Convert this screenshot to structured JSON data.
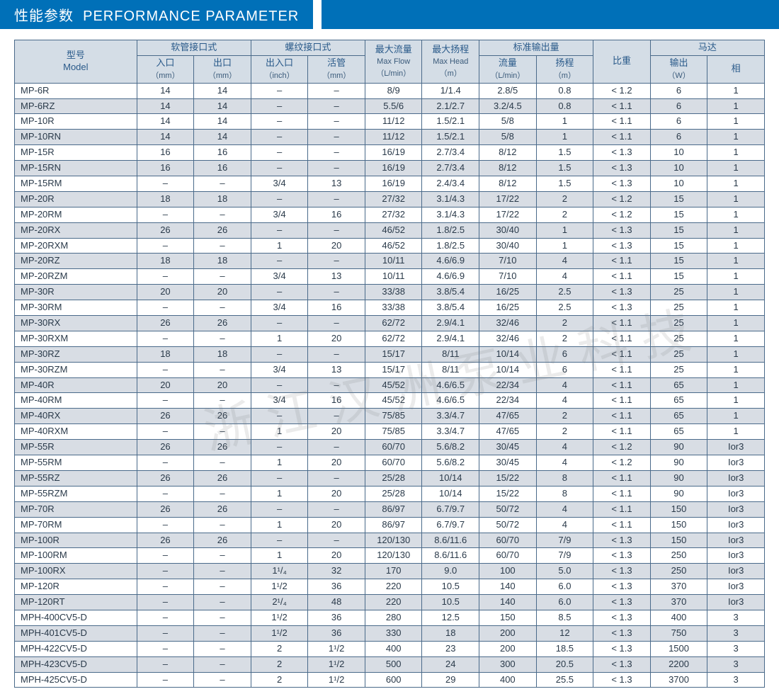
{
  "title_cn": "性能参数",
  "title_en": "PERFORMANCE PARAMETER",
  "watermark": "浙江汉洲泵业科技",
  "colors": {
    "header_bar": "#0070b8",
    "th_bg": "#d4dde6",
    "th_text": "#2a5a8a",
    "border": "#4a6a8a",
    "row_odd": "#ffffff",
    "row_even": "#d8dde4"
  },
  "header": {
    "group_model": {
      "l1": "型号",
      "l2": "Model"
    },
    "group_hose": "软管接口式",
    "group_thread": "螺纹接口式",
    "group_maxflow": {
      "l1": "最大流量",
      "l2": "Max Flow",
      "l3": "（L/min）"
    },
    "group_maxhead": {
      "l1": "最大扬程",
      "l2": "Max Head",
      "l3": "（m）"
    },
    "group_stdout": "标准输出量",
    "group_sg": "比重",
    "group_motor": "马达",
    "sub_inlet": {
      "l1": "入口",
      "l2": "（mm）"
    },
    "sub_outlet": {
      "l1": "出口",
      "l2": "（mm）"
    },
    "sub_io": {
      "l1": "出入口",
      "l2": "（inch）"
    },
    "sub_live": {
      "l1": "活管",
      "l2": "（mm）"
    },
    "sub_flow": {
      "l1": "流量",
      "l2": "（L/min）"
    },
    "sub_head": {
      "l1": "扬程",
      "l2": "（m）"
    },
    "sub_output": {
      "l1": "输出",
      "l2": "（W）"
    },
    "sub_phase": "相"
  },
  "rows": [
    [
      "MP-6R",
      "14",
      "14",
      "–",
      "–",
      "8/9",
      "1/1.4",
      "2.8/5",
      "0.8",
      "< 1.2",
      "6",
      "1"
    ],
    [
      "MP-6RZ",
      "14",
      "14",
      "–",
      "–",
      "5.5/6",
      "2.1/2.7",
      "3.2/4.5",
      "0.8",
      "< 1.1",
      "6",
      "1"
    ],
    [
      "MP-10R",
      "14",
      "14",
      "–",
      "–",
      "11/12",
      "1.5/2.1",
      "5/8",
      "1",
      "< 1.1",
      "6",
      "1"
    ],
    [
      "MP-10RN",
      "14",
      "14",
      "–",
      "–",
      "11/12",
      "1.5/2.1",
      "5/8",
      "1",
      "< 1.1",
      "6",
      "1"
    ],
    [
      "MP-15R",
      "16",
      "16",
      "–",
      "–",
      "16/19",
      "2.7/3.4",
      "8/12",
      "1.5",
      "< 1.3",
      "10",
      "1"
    ],
    [
      "MP-15RN",
      "16",
      "16",
      "–",
      "–",
      "16/19",
      "2.7/3.4",
      "8/12",
      "1.5",
      "< 1.3",
      "10",
      "1"
    ],
    [
      "MP-15RM",
      "–",
      "–",
      "3/4",
      "13",
      "16/19",
      "2.4/3.4",
      "8/12",
      "1.5",
      "< 1.3",
      "10",
      "1"
    ],
    [
      "MP-20R",
      "18",
      "18",
      "–",
      "–",
      "27/32",
      "3.1/4.3",
      "17/22",
      "2",
      "< 1.2",
      "15",
      "1"
    ],
    [
      "MP-20RM",
      "–",
      "–",
      "3/4",
      "16",
      "27/32",
      "3.1/4.3",
      "17/22",
      "2",
      "< 1.2",
      "15",
      "1"
    ],
    [
      "MP-20RX",
      "26",
      "26",
      "–",
      "–",
      "46/52",
      "1.8/2.5",
      "30/40",
      "1",
      "< 1.3",
      "15",
      "1"
    ],
    [
      "MP-20RXM",
      "–",
      "–",
      "1",
      "20",
      "46/52",
      "1.8/2.5",
      "30/40",
      "1",
      "< 1.3",
      "15",
      "1"
    ],
    [
      "MP-20RZ",
      "18",
      "18",
      "–",
      "–",
      "10/11",
      "4.6/6.9",
      "7/10",
      "4",
      "< 1.1",
      "15",
      "1"
    ],
    [
      "MP-20RZM",
      "–",
      "–",
      "3/4",
      "13",
      "10/11",
      "4.6/6.9",
      "7/10",
      "4",
      "< 1.1",
      "15",
      "1"
    ],
    [
      "MP-30R",
      "20",
      "20",
      "–",
      "–",
      "33/38",
      "3.8/5.4",
      "16/25",
      "2.5",
      "< 1.3",
      "25",
      "1"
    ],
    [
      "MP-30RM",
      "–",
      "–",
      "3/4",
      "16",
      "33/38",
      "3.8/5.4",
      "16/25",
      "2.5",
      "< 1.3",
      "25",
      "1"
    ],
    [
      "MP-30RX",
      "26",
      "26",
      "–",
      "–",
      "62/72",
      "2.9/4.1",
      "32/46",
      "2",
      "< 1.1",
      "25",
      "1"
    ],
    [
      "MP-30RXM",
      "–",
      "–",
      "1",
      "20",
      "62/72",
      "2.9/4.1",
      "32/46",
      "2",
      "< 1.1",
      "25",
      "1"
    ],
    [
      "MP-30RZ",
      "18",
      "18",
      "–",
      "–",
      "15/17",
      "8/11",
      "10/14",
      "6",
      "< 1.1",
      "25",
      "1"
    ],
    [
      "MP-30RZM",
      "–",
      "–",
      "3/4",
      "13",
      "15/17",
      "8/11",
      "10/14",
      "6",
      "< 1.1",
      "25",
      "1"
    ],
    [
      "MP-40R",
      "20",
      "20",
      "–",
      "–",
      "45/52",
      "4.6/6.5",
      "22/34",
      "4",
      "< 1.1",
      "65",
      "1"
    ],
    [
      "MP-40RM",
      "–",
      "–",
      "3/4",
      "16",
      "45/52",
      "4.6/6.5",
      "22/34",
      "4",
      "< 1.1",
      "65",
      "1"
    ],
    [
      "MP-40RX",
      "26",
      "26",
      "–",
      "–",
      "75/85",
      "3.3/4.7",
      "47/65",
      "2",
      "< 1.1",
      "65",
      "1"
    ],
    [
      "MP-40RXM",
      "–",
      "–",
      "1",
      "20",
      "75/85",
      "3.3/4.7",
      "47/65",
      "2",
      "< 1.1",
      "65",
      "1"
    ],
    [
      "MP-55R",
      "26",
      "26",
      "–",
      "–",
      "60/70",
      "5.6/8.2",
      "30/45",
      "4",
      "< 1.2",
      "90",
      "Ior3"
    ],
    [
      "MP-55RM",
      "–",
      "–",
      "1",
      "20",
      "60/70",
      "5.6/8.2",
      "30/45",
      "4",
      "< 1.2",
      "90",
      "Ior3"
    ],
    [
      "MP-55RZ",
      "26",
      "26",
      "–",
      "–",
      "25/28",
      "10/14",
      "15/22",
      "8",
      "< 1.1",
      "90",
      "Ior3"
    ],
    [
      "MP-55RZM",
      "–",
      "–",
      "1",
      "20",
      "25/28",
      "10/14",
      "15/22",
      "8",
      "< 1.1",
      "90",
      "Ior3"
    ],
    [
      "MP-70R",
      "26",
      "26",
      "–",
      "–",
      "86/97",
      "6.7/9.7",
      "50/72",
      "4",
      "< 1.1",
      "150",
      "Ior3"
    ],
    [
      "MP-70RM",
      "–",
      "–",
      "1",
      "20",
      "86/97",
      "6.7/9.7",
      "50/72",
      "4",
      "< 1.1",
      "150",
      "Ior3"
    ],
    [
      "MP-100R",
      "26",
      "26",
      "–",
      "–",
      "120/130",
      "8.6/11.6",
      "60/70",
      "7/9",
      "< 1.3",
      "150",
      "Ior3"
    ],
    [
      "MP-100RM",
      "–",
      "–",
      "1",
      "20",
      "120/130",
      "8.6/11.6",
      "60/70",
      "7/9",
      "< 1.3",
      "250",
      "Ior3"
    ],
    [
      "MP-100RX",
      "–",
      "–",
      "1¹/₄",
      "32",
      "170",
      "9.0",
      "100",
      "5.0",
      "< 1.3",
      "250",
      "Ior3"
    ],
    [
      "MP-120R",
      "–",
      "–",
      "1¹/2",
      "36",
      "220",
      "10.5",
      "140",
      "6.0",
      "< 1.3",
      "370",
      "Ior3"
    ],
    [
      "MP-120RT",
      "–",
      "–",
      "2¹/₄",
      "48",
      "220",
      "10.5",
      "140",
      "6.0",
      "< 1.3",
      "370",
      "Ior3"
    ],
    [
      "MPH-400CV5-D",
      "–",
      "–",
      "1¹/2",
      "36",
      "280",
      "12.5",
      "150",
      "8.5",
      "< 1.3",
      "400",
      "3"
    ],
    [
      "MPH-401CV5-D",
      "–",
      "–",
      "1¹/2",
      "36",
      "330",
      "18",
      "200",
      "12",
      "< 1.3",
      "750",
      "3"
    ],
    [
      "MPH-422CV5-D",
      "–",
      "–",
      "2",
      "1¹/2",
      "400",
      "23",
      "200",
      "18.5",
      "< 1.3",
      "1500",
      "3"
    ],
    [
      "MPH-423CV5-D",
      "–",
      "–",
      "2",
      "1¹/2",
      "500",
      "24",
      "300",
      "20.5",
      "< 1.3",
      "2200",
      "3"
    ],
    [
      "MPH-425CV5-D",
      "–",
      "–",
      "2",
      "1¹/2",
      "600",
      "29",
      "400",
      "25.5",
      "< 1.3",
      "3700",
      "3"
    ]
  ]
}
